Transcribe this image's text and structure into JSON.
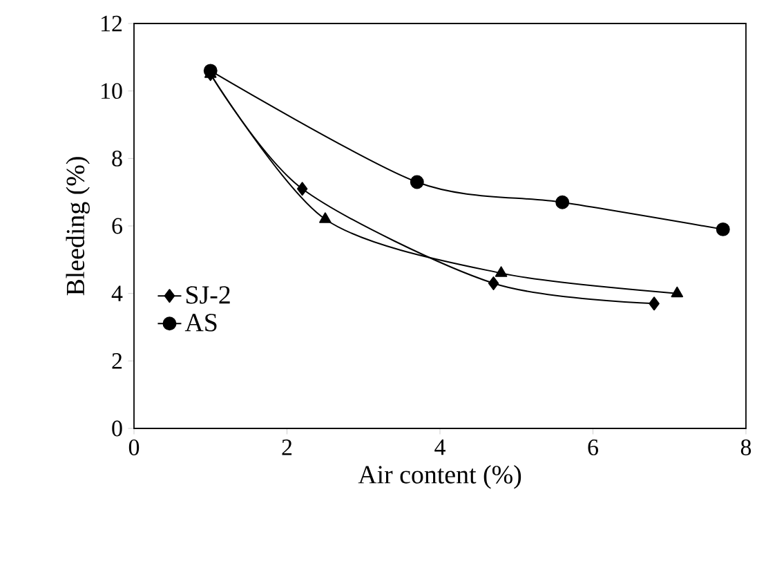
{
  "chart_data": {
    "type": "line",
    "xlabel": "Air content (%)",
    "ylabel": "Bleeding (%)",
    "xlim": [
      0,
      8
    ],
    "xticks": [
      0,
      2,
      4,
      6,
      8
    ],
    "ylim": [
      0,
      12
    ],
    "yticks": [
      0,
      2,
      4,
      6,
      8,
      10,
      12
    ],
    "grid": false,
    "legend": "left",
    "line_style": "solid",
    "series": [
      {
        "name": "SJ-2",
        "color": "#000000",
        "marker": "diamond",
        "x": [
          1.0,
          2.2,
          4.7,
          6.8
        ],
        "values": [
          10.5,
          7.1,
          4.3,
          3.7
        ]
      },
      {
        "color": "#000000",
        "marker": "triangle",
        "x": [
          1.0,
          2.5,
          4.8,
          7.1
        ],
        "values": [
          10.5,
          6.2,
          4.6,
          4.0
        ]
      },
      {
        "name": "AS",
        "color": "#000000",
        "marker": "circle",
        "x": [
          1.0,
          3.7,
          5.6,
          7.7
        ],
        "values": [
          10.6,
          7.3,
          6.7,
          5.9
        ]
      }
    ]
  }
}
